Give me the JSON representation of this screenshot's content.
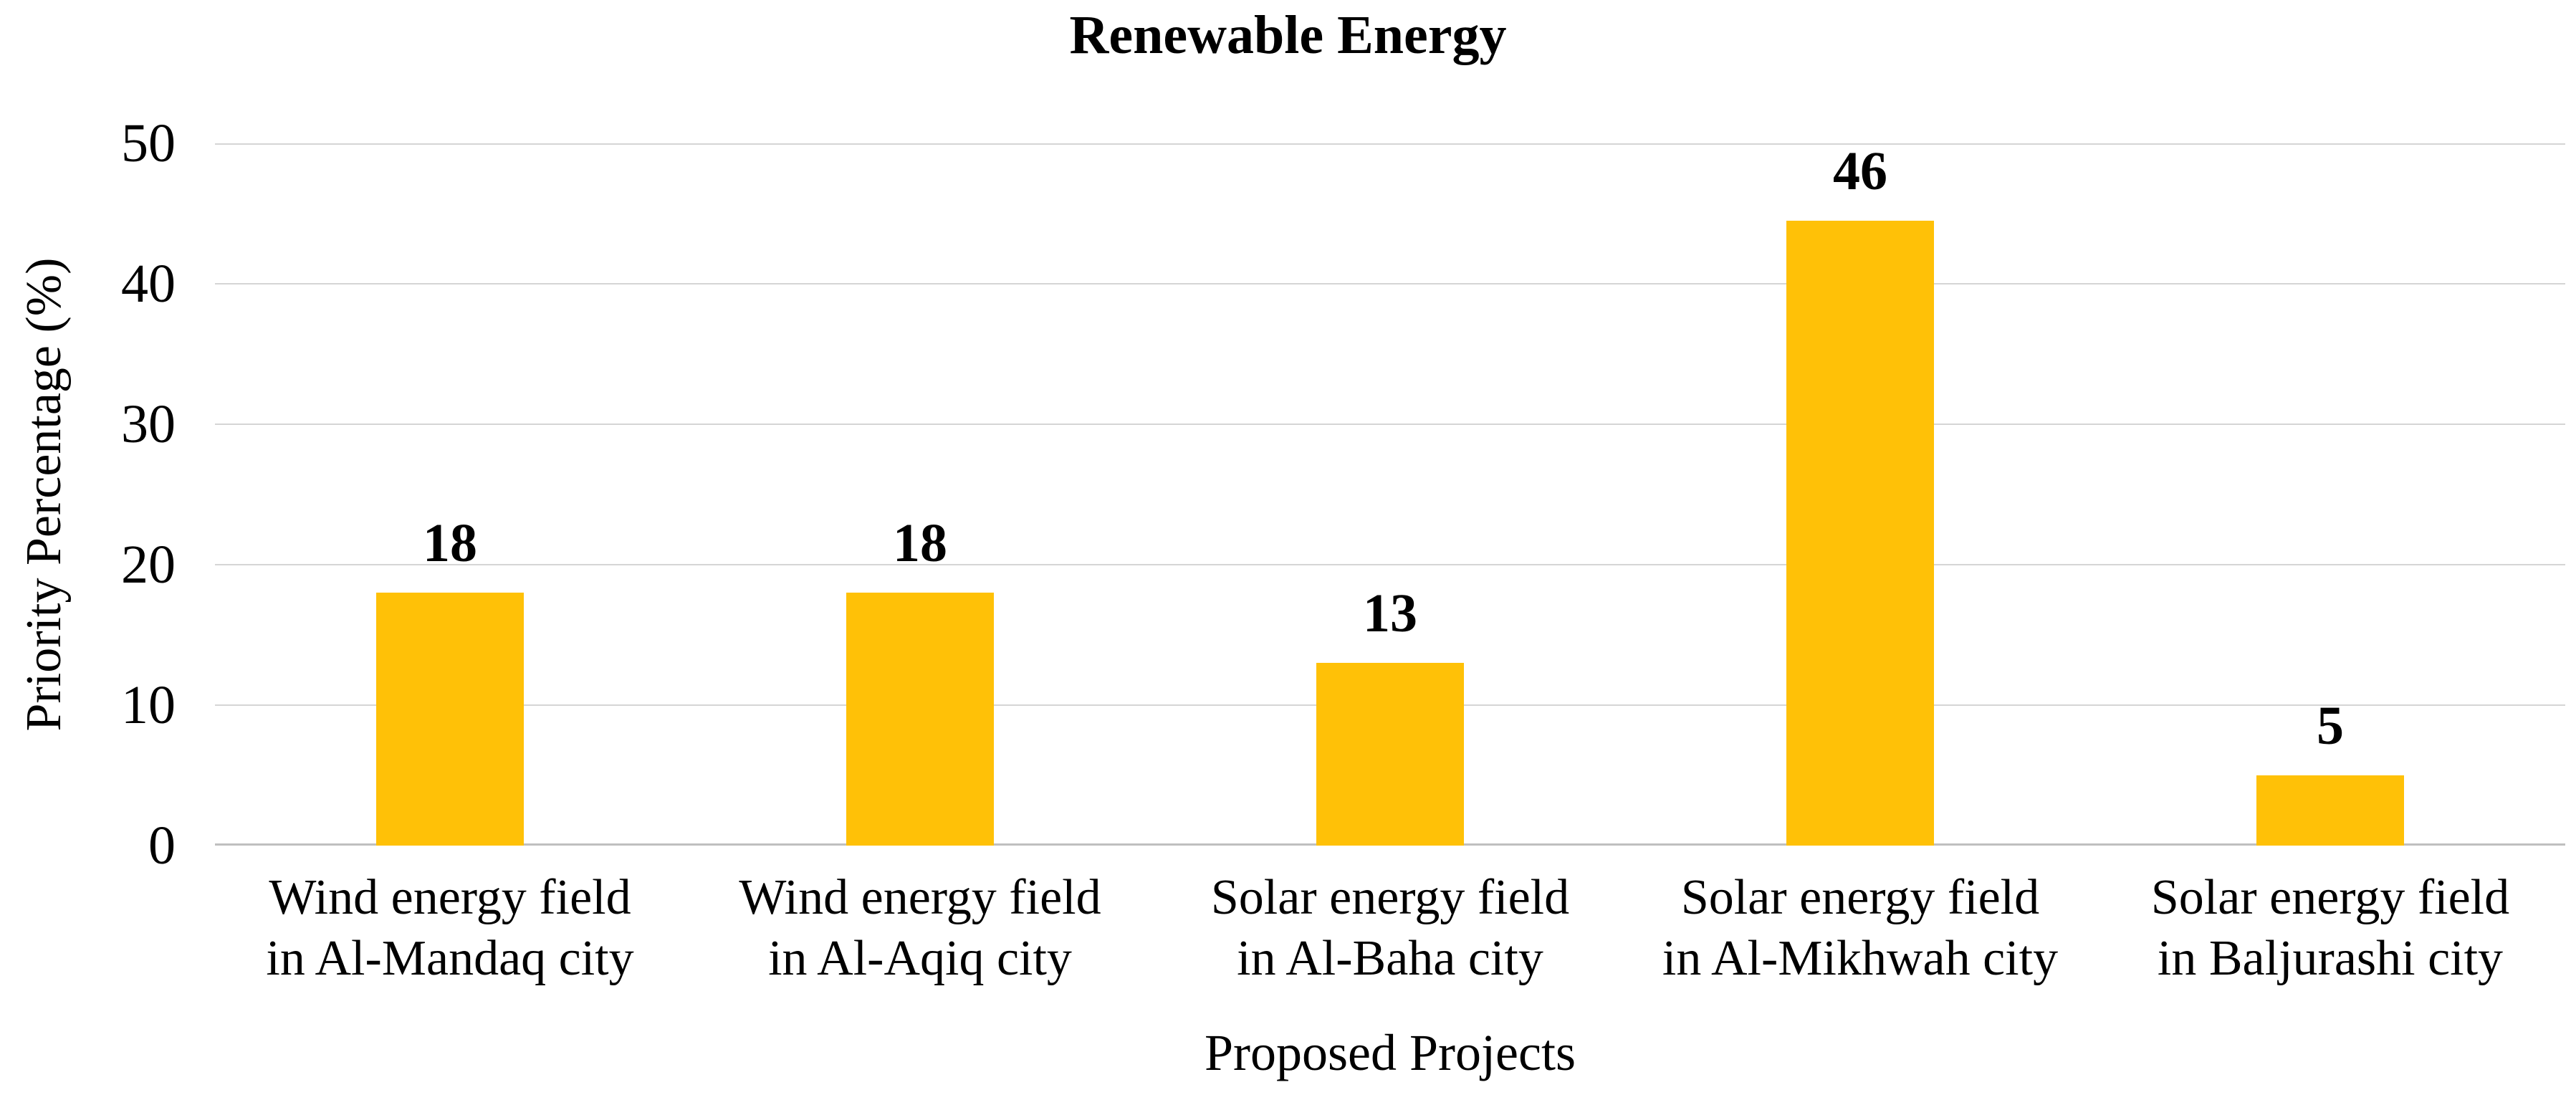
{
  "chart_data": {
    "type": "bar",
    "title": "Renewable Energy",
    "xlabel": "Proposed Projects",
    "ylabel": "Priority Percentage (%)",
    "categories": [
      "Wind energy field in Al-Mandaq city",
      "Wind energy field in Al-Aqiq city",
      "Solar energy field in Al-Baha city",
      "Solar energy field in Al-Mikhwah city",
      "Solar energy field in Baljurashi city"
    ],
    "values": [
      18,
      18,
      13,
      46,
      5
    ],
    "data_labels": [
      "18",
      "18",
      "13",
      "46",
      "5"
    ],
    "yticks_top_to_bottom": [
      "50",
      "40",
      "30",
      "20",
      "10",
      "0"
    ],
    "ylim": [
      0,
      50
    ],
    "grid": "horizontal",
    "legend": "none",
    "colors": {
      "bar": "#FFC107",
      "gridline": "#D5D5D5",
      "axis_line": "#BFBFBF",
      "text": "#000000",
      "background": "#FFFFFF"
    }
  }
}
